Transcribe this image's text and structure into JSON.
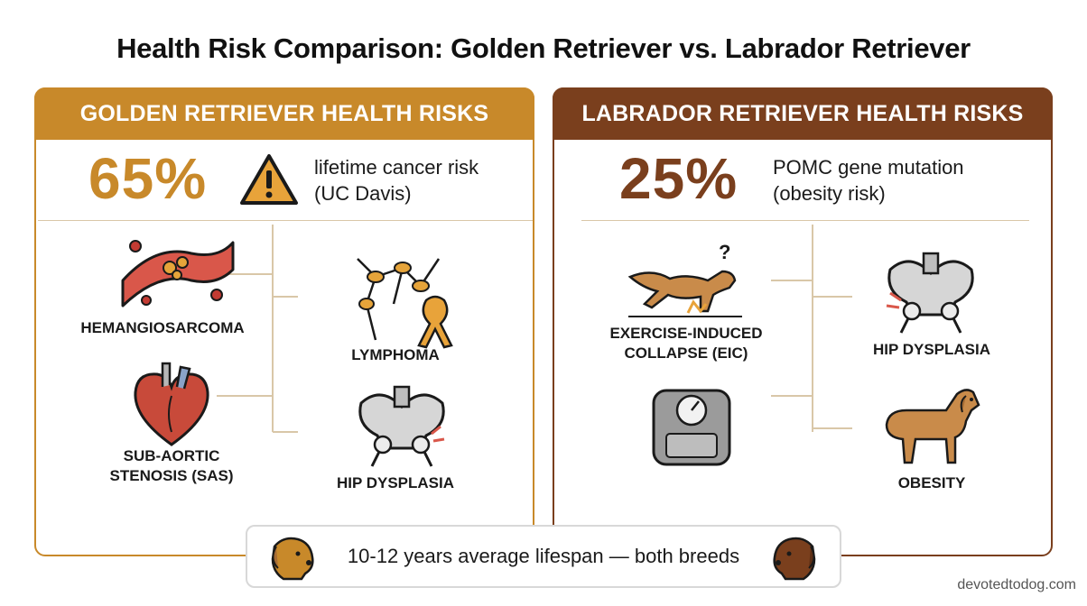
{
  "title": "Health Risk Comparison: Golden Retriever vs. Labrador Retriever",
  "golden": {
    "header": "GOLDEN RETRIEVER HEALTH RISKS",
    "stat_value": "65%",
    "stat_line1": "lifetime cancer risk",
    "stat_line2": "(UC Davis)",
    "items": {
      "hemangiosarcoma": "HEMANGIOSARCOMA",
      "lymphoma": "LYMPHOMA",
      "sas_line1": "SUB-AORTIC",
      "sas_line2": "STENOSIS (SAS)",
      "hip": "HIP DYSPLASIA"
    }
  },
  "lab": {
    "header": "LABRADOR RETRIEVER HEALTH RISKS",
    "stat_value": "25%",
    "stat_line1": "POMC gene mutation",
    "stat_line2": "(obesity risk)",
    "items": {
      "eic_line1": "EXERCISE-INDUCED",
      "eic_line2": "COLLAPSE (EIC)",
      "hip": "HIP DYSPLASIA",
      "obesity": "OBESITY"
    }
  },
  "footer": {
    "text": "10-12 years average lifespan — both breeds"
  },
  "credit": "devotedtodog.com",
  "colors": {
    "golden": "#c8892a",
    "lab": "#7a3f1d"
  },
  "icons": [
    "warning-icon",
    "blood-vessel-icon",
    "lymph-node-icon",
    "heart-icon",
    "pelvis-icon",
    "collapsing-dog-icon",
    "scale-icon",
    "dog-icon"
  ]
}
